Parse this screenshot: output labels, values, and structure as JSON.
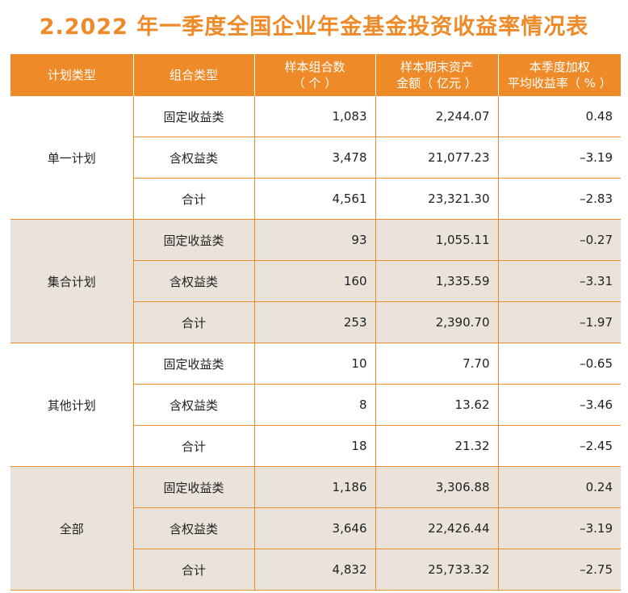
{
  "title": "2.2022 年一季度全国企业年金基金投资收益率情况表",
  "headers": {
    "plan_type": "计划类型",
    "combo_type": "组合类型",
    "sample_count_l1": "样本组合数",
    "sample_count_l2": "（ 个 ）",
    "assets_l1": "样本期末资产",
    "assets_l2": "金额（ 亿元 ）",
    "return_l1": "本季度加权",
    "return_l2": "平均收益率（ % ）"
  },
  "groups": [
    {
      "plan": "单一计划",
      "rows": [
        {
          "combo": "固定收益类",
          "count": "1,083",
          "assets": "2,244.07",
          "return": "0.48"
        },
        {
          "combo": "含权益类",
          "count": "3,478",
          "assets": "21,077.23",
          "return": "–3.19"
        },
        {
          "combo": "合计",
          "count": "4,561",
          "assets": "23,321.30",
          "return": "–2.83"
        }
      ]
    },
    {
      "plan": "集合计划",
      "rows": [
        {
          "combo": "固定收益类",
          "count": "93",
          "assets": "1,055.11",
          "return": "–0.27"
        },
        {
          "combo": "含权益类",
          "count": "160",
          "assets": "1,335.59",
          "return": "–3.31"
        },
        {
          "combo": "合计",
          "count": "253",
          "assets": "2,390.70",
          "return": "–1.97"
        }
      ]
    },
    {
      "plan": "其他计划",
      "rows": [
        {
          "combo": "固定收益类",
          "count": "10",
          "assets": "7.70",
          "return": "–0.65"
        },
        {
          "combo": "含权益类",
          "count": "8",
          "assets": "13.62",
          "return": "–3.46"
        },
        {
          "combo": "合计",
          "count": "18",
          "assets": "21.32",
          "return": "–2.45"
        }
      ]
    },
    {
      "plan": "全部",
      "rows": [
        {
          "combo": "固定收益类",
          "count": "1,186",
          "assets": "3,306.88",
          "return": "0.24"
        },
        {
          "combo": "含权益类",
          "count": "3,646",
          "assets": "22,426.44",
          "return": "–3.19"
        },
        {
          "combo": "合计",
          "count": "4,832",
          "assets": "25,733.32",
          "return": "–2.75"
        }
      ]
    }
  ],
  "colors": {
    "accent": "#EE8A28",
    "band": "#E9E3DA"
  }
}
